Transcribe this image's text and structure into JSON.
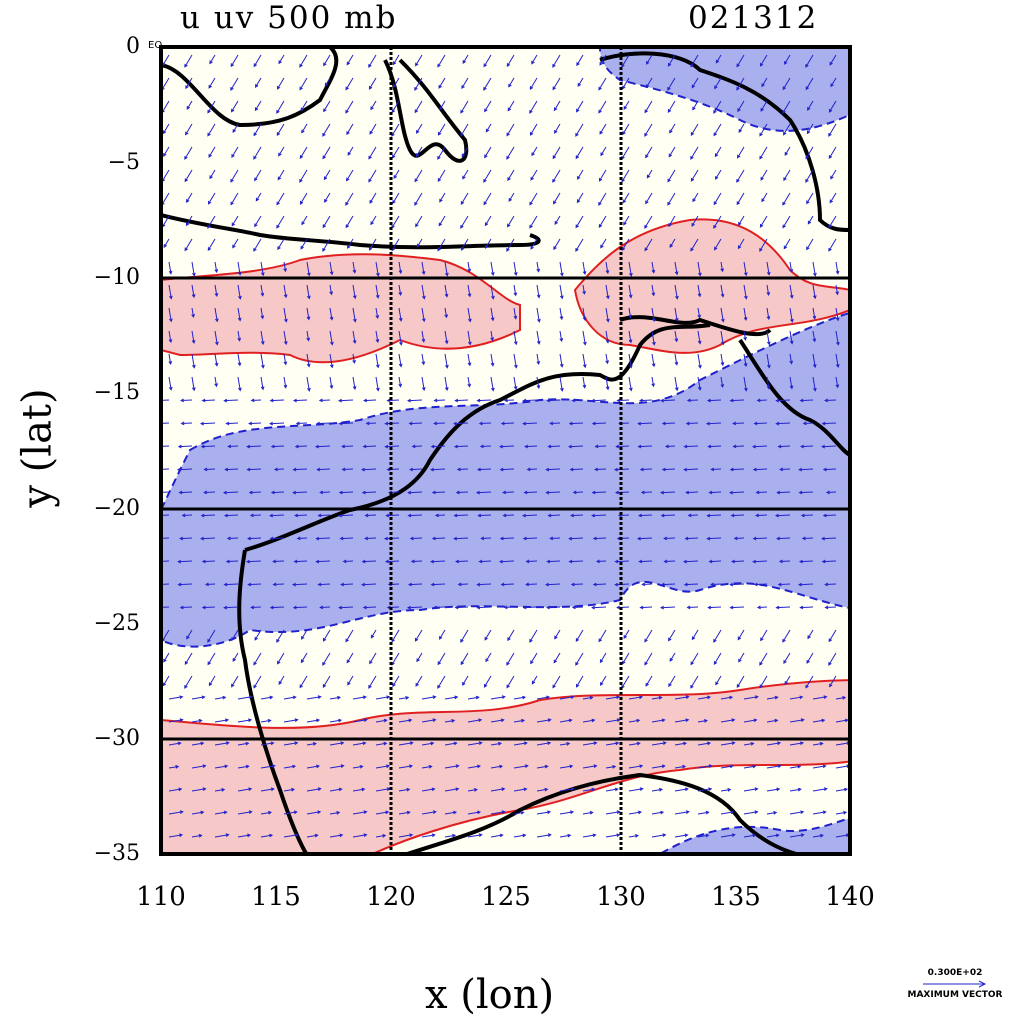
{
  "title": {
    "left": "u  uv 500  mb",
    "right": "021312"
  },
  "axes": {
    "x_label": "x  (lon)",
    "y_label": "y  (lat)",
    "x_ticks": [
      "110",
      "115",
      "120",
      "125",
      "130",
      "135",
      "140"
    ],
    "y_ticks": [
      "0",
      "−5",
      "−10",
      "−15",
      "−20",
      "−25",
      "−30",
      "−35"
    ],
    "eq_tag": "EQ",
    "x_range": [
      110,
      140
    ],
    "y_range": [
      -35,
      0
    ],
    "grid_lines_lon": [
      120,
      130
    ],
    "grid_lines_lat": [
      -10,
      -20,
      -30
    ]
  },
  "legend": {
    "vector_value": "0.300E+02",
    "vector_caption": "MAXIMUM VECTOR"
  },
  "colors": {
    "positive_fill": "#f6c8c8",
    "positive_line": "#e02020",
    "negative_fill": "#aab0ee",
    "negative_line": "#2020cc",
    "coast": "#000000",
    "vector": "#2222cc",
    "background": "#fffff4"
  }
}
